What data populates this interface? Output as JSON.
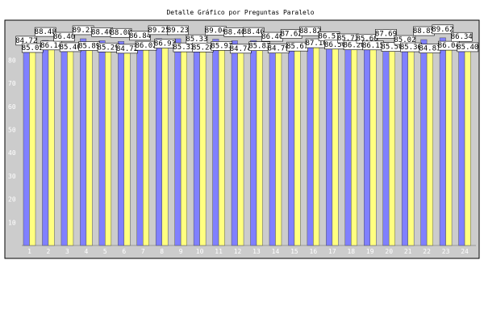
{
  "chart_data": {
    "type": "bar",
    "title": "Detalle Gráfico por Preguntas Paralelo",
    "categories": [
      "1",
      "2",
      "3",
      "4",
      "5",
      "6",
      "7",
      "8",
      "9",
      "10",
      "11",
      "12",
      "13",
      "14",
      "15",
      "16",
      "17",
      "18",
      "19",
      "20",
      "21",
      "22",
      "23",
      "24"
    ],
    "series": [
      {
        "color": "#8080ff",
        "values": [
          84.72,
          88.48,
          86.4,
          89.23,
          88.4,
          88.08,
          86.84,
          89.25,
          89.23,
          85.33,
          89.04,
          88.4,
          88.46,
          86.4,
          87.62,
          88.82,
          86.57,
          85.73,
          85.6,
          87.69,
          85.02,
          88.85,
          89.62,
          86.34
        ]
      },
      {
        "color": "#ffff80",
        "values": [
          85.05,
          86.14,
          85.4,
          85.89,
          85.29,
          84.72,
          86.02,
          86.93,
          85.33,
          85.28,
          85.93,
          84.74,
          85.83,
          84.79,
          85.67,
          87.1,
          86.5,
          86.2,
          86.15,
          85.5,
          85.36,
          84.83,
          86.04,
          85.4
        ]
      }
    ],
    "yticks": [
      10,
      20,
      30,
      40,
      50,
      60,
      70,
      80
    ],
    "ylim": [
      0,
      92
    ],
    "colors": {
      "plot_bg": "#cccccc",
      "border": "#000000"
    }
  }
}
